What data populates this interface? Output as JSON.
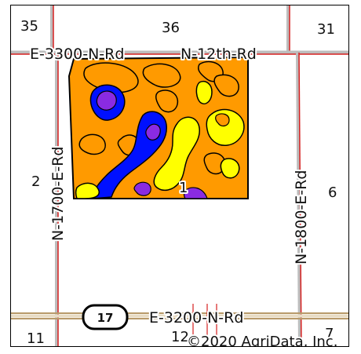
{
  "sections": {
    "s35": "35",
    "s36": "36",
    "s31": "31",
    "s2": "2",
    "s6": "6",
    "s11": "11",
    "s12": "12",
    "s7": "7"
  },
  "roads": {
    "e3300": "E-3300-N-Rd",
    "n12th": "N-12th-Rd",
    "n1700": "N-1700-E-Rd",
    "n1800": "N-1800-E-Rd",
    "e3200": "E-3200-N-Rd"
  },
  "highway_shield": "17",
  "field_label": "1",
  "copyright": "©2020 AgriData, Inc.",
  "colors": {
    "orange": "#ff9a00",
    "yellow": "#ffff00",
    "blue": "#0010ff",
    "purple": "#8a2be2",
    "road_red": "#d62020",
    "road_gray": "#bdbdbd",
    "road_tan": "#b89a6a"
  }
}
